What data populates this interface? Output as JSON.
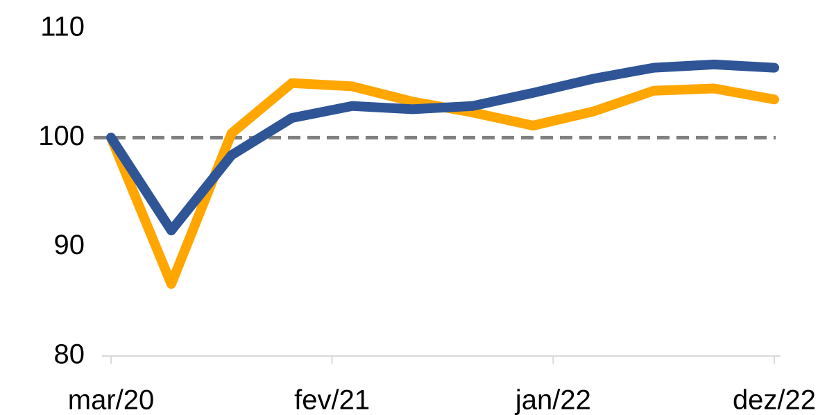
{
  "chart_data": {
    "type": "line",
    "x": [
      "2020-03",
      "2020-06",
      "2020-09",
      "2020-12",
      "2021-03",
      "2021-06",
      "2021-09",
      "2021-12",
      "2022-03",
      "2022-06",
      "2022-09",
      "2022-12"
    ],
    "series": [
      {
        "color": "#ffa600",
        "values": [
          100,
          86.6,
          100.4,
          105.0,
          104.7,
          103.3,
          102.3,
          101.1,
          102.4,
          104.3,
          104.5,
          103.5
        ]
      },
      {
        "color": "#2f5597",
        "values": [
          100,
          91.5,
          98.4,
          101.8,
          102.9,
          102.6,
          102.9,
          104.1,
          105.4,
          106.4,
          106.7,
          106.4
        ]
      }
    ],
    "reference_line": 100,
    "reference_color": "#808080",
    "xlim": [
      "2020-03",
      "2022-12"
    ],
    "xticks": [
      {
        "value": "2020-03",
        "label": "mar/20"
      },
      {
        "value": "2021-02",
        "label": "fev/21"
      },
      {
        "value": "2022-01",
        "label": "jan/22"
      },
      {
        "value": "2022-12",
        "label": "dez/22"
      }
    ],
    "ylim": [
      80,
      110
    ],
    "yticks": [
      80,
      90,
      100,
      110
    ],
    "grid": false
  }
}
